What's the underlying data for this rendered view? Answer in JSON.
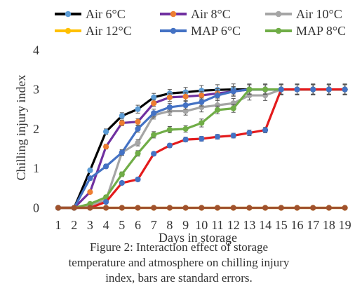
{
  "chart_data": {
    "type": "line",
    "xlabel": "Days in storage",
    "ylabel": "Chilling injury index",
    "x": [
      1,
      2,
      3,
      4,
      5,
      6,
      7,
      8,
      9,
      10,
      11,
      12,
      13,
      14,
      15,
      16,
      17,
      18,
      19
    ],
    "ylim": [
      0,
      4
    ],
    "yticks": [
      "0",
      "1",
      "2",
      "3",
      "4"
    ],
    "xticks": [
      "1",
      "2",
      "3",
      "4",
      "5",
      "6",
      "7",
      "8",
      "9",
      "10",
      "11",
      "12",
      "13",
      "14",
      "15",
      "16",
      "17",
      "18",
      "19"
    ],
    "legend_position": "top",
    "grid": false,
    "error_bars": true,
    "series": [
      {
        "name": "Air 6°C",
        "color": "#000000",
        "marker_color": "#5b9bd5",
        "values": [
          0,
          0,
          0.95,
          1.93,
          2.33,
          2.5,
          2.8,
          2.9,
          2.93,
          2.97,
          2.99,
          3.0,
          3.0,
          3.0,
          3.0,
          3.0,
          3.0,
          3.0,
          3.0
        ],
        "errors": [
          0,
          0,
          0.05,
          0.07,
          0.08,
          0.1,
          0.1,
          0.1,
          0.12,
          0.13,
          0.13,
          0.14,
          0.14,
          0.14,
          0.14,
          0.14,
          0.14,
          0.14,
          0.14
        ]
      },
      {
        "name": "Air 8°C",
        "color": "#7030a0",
        "marker_color": "#ed7d31",
        "values": [
          0,
          0,
          0.4,
          1.55,
          2.15,
          2.18,
          2.65,
          2.8,
          2.82,
          2.85,
          2.9,
          2.95,
          3.0,
          3.0,
          3.0,
          3.0,
          3.0,
          3.0,
          3.0
        ],
        "errors": [
          0,
          0,
          0.04,
          0.06,
          0.07,
          0.08,
          0.08,
          0.1,
          0.1,
          0.1,
          0.12,
          0.12,
          0.12,
          0.12,
          0.12,
          0.12,
          0.12,
          0.12,
          0.12
        ]
      },
      {
        "name": "Air 10°C",
        "color": "#a5a5a5",
        "marker_color": "#a5a5a5",
        "values": [
          0,
          0,
          0.05,
          0.2,
          1.4,
          1.65,
          2.35,
          2.45,
          2.45,
          2.55,
          2.6,
          2.65,
          2.85,
          2.85,
          3.0,
          3.0,
          3.0,
          3.0,
          3.0
        ],
        "errors": [
          0,
          0,
          0.03,
          0.05,
          0.07,
          0.08,
          0.1,
          0.1,
          0.1,
          0.12,
          0.12,
          0.12,
          0.12,
          0.13,
          0.13,
          0.13,
          0.13,
          0.13,
          0.13
        ]
      },
      {
        "name": "Air 12°C",
        "color": "#ffc000",
        "marker_color": "#ffc000",
        "values": [
          0,
          0,
          0,
          0,
          0,
          0,
          0,
          0,
          0,
          0,
          0,
          0,
          0,
          0,
          0,
          0,
          0,
          0,
          0
        ],
        "errors": []
      },
      {
        "name": "MAP 6°C",
        "color": "#4472c4",
        "marker_color": "#4472c4",
        "values": [
          0,
          0,
          0.75,
          1.05,
          1.4,
          2.0,
          2.4,
          2.55,
          2.6,
          2.68,
          2.85,
          2.95,
          3.0,
          3.0,
          3.0,
          3.0,
          3.0,
          3.0,
          3.0
        ],
        "errors": [
          0,
          0,
          0.05,
          0.05,
          0.07,
          0.08,
          0.1,
          0.1,
          0.1,
          0.1,
          0.12,
          0.12,
          0.12,
          0.12,
          0.12,
          0.12,
          0.12,
          0.12,
          0.12
        ]
      },
      {
        "name": "MAP 8°C",
        "color": "#70ad47",
        "marker_color": "#70ad47",
        "values": [
          0,
          0,
          0.1,
          0.27,
          0.85,
          1.38,
          1.85,
          1.98,
          2.0,
          2.15,
          2.48,
          2.52,
          3.0,
          3.0,
          3.0,
          3.0,
          3.0,
          3.0,
          3.0
        ],
        "errors": [
          0,
          0,
          0.03,
          0.05,
          0.06,
          0.07,
          0.08,
          0.08,
          0.08,
          0.1,
          0.1,
          0.1,
          0.12,
          0.12,
          0.12,
          0.12,
          0.12,
          0.12,
          0.12
        ]
      },
      {
        "name": "",
        "color": "#e31a1c",
        "marker_color": "#4472c4",
        "values": [
          0,
          0,
          0,
          0.15,
          0.63,
          0.72,
          1.37,
          1.58,
          1.73,
          1.75,
          1.8,
          1.83,
          1.9,
          1.97,
          3.0,
          3.0,
          3.0,
          3.0,
          3.0
        ],
        "errors": [
          0,
          0,
          0.02,
          0.03,
          0.04,
          0.05,
          0.05,
          0.05,
          0.06,
          0.06,
          0.06,
          0.06,
          0.07,
          0.07,
          0.13,
          0.13,
          0.13,
          0.13,
          0.13
        ]
      },
      {
        "name": "",
        "color": "#a0522d",
        "marker_color": "#a0522d",
        "values": [
          0,
          0,
          0,
          0,
          0,
          0,
          0,
          0,
          0,
          0,
          0,
          0,
          0,
          0,
          0,
          0,
          0,
          0,
          0
        ],
        "errors": []
      }
    ]
  },
  "caption": [
    "Figure 2: Interaction effect of storage",
    "temperature and atmosphere on chilling injury",
    "index, bars are standard errors."
  ]
}
